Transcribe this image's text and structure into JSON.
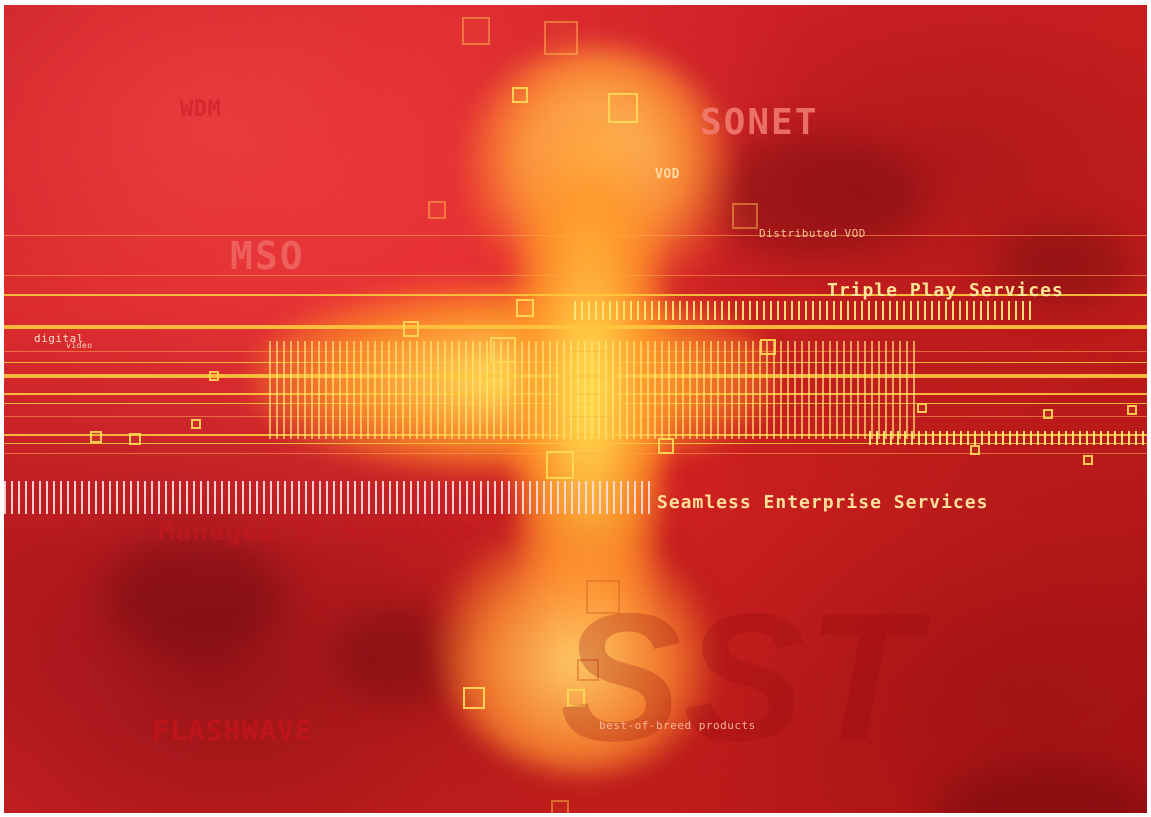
{
  "scene": {
    "colors": {
      "background": "#d6221f",
      "deep_red": "#8b0f12",
      "glow": "#ffd16a",
      "line": "#ffc63e"
    },
    "words": [
      {
        "text": "WDM"
      },
      {
        "text": "SONET"
      },
      {
        "text": "VOD"
      },
      {
        "text": "Distributed VOD"
      },
      {
        "text": "MSO"
      },
      {
        "text": "Triple Play Services"
      },
      {
        "text": "digital"
      },
      {
        "text": "video"
      },
      {
        "text": "Seamless Enterprise Services"
      },
      {
        "text": "Managed IP Services"
      },
      {
        "text": "FLASHWAVE"
      },
      {
        "text": "best-of-breed products"
      },
      {
        "text": "SST"
      }
    ]
  }
}
